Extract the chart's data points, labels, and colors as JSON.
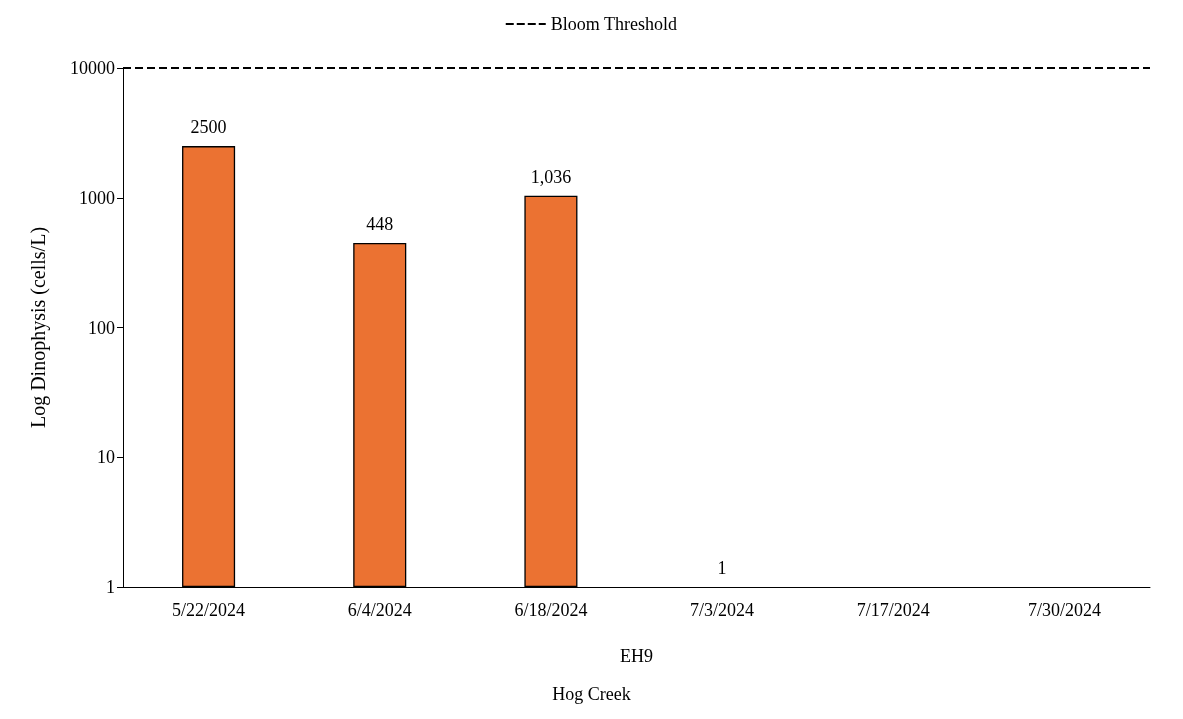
{
  "chart_data": {
    "type": "bar",
    "ylabel": "Log Dinophysis (cells/L)",
    "xlabel": "EH9",
    "annotations": [
      "Hog Creek"
    ],
    "categories": [
      "5/22/2024",
      "6/4/2024",
      "6/18/2024",
      "7/3/2024",
      "7/17/2024",
      "7/30/2024"
    ],
    "values": [
      2500,
      448,
      1036,
      1,
      null,
      null
    ],
    "value_labels": [
      "2500",
      "448",
      "1,036",
      "1",
      null,
      null
    ],
    "color": "#eb7232",
    "log": "y",
    "ylim": [
      1,
      10000
    ],
    "yticks": [
      1,
      10,
      100,
      1000,
      10000
    ],
    "grid": false,
    "legend": "top",
    "ref_lines": [
      {
        "axis": "y",
        "value": 10000,
        "label": "Bloom Threshold",
        "color": "#000000",
        "line_style": "dashed"
      }
    ]
  }
}
